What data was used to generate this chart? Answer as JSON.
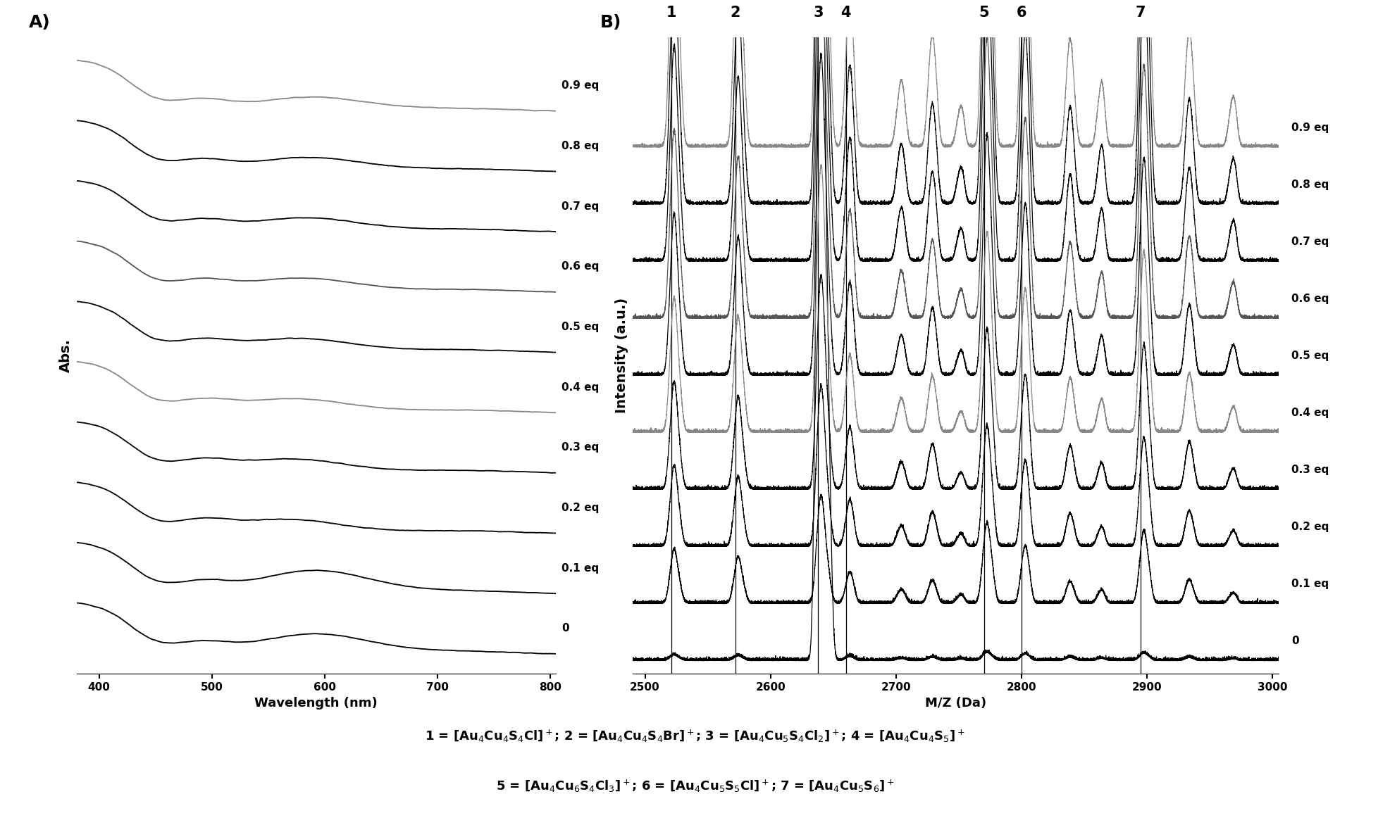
{
  "fig_width": 19.73,
  "fig_height": 11.82,
  "panel_A_label": "A)",
  "panel_B_label": "B)",
  "abs_xlabel": "Wavelength (nm)",
  "abs_ylabel": "Abs.",
  "ms_xlabel": "M/Z (Da)",
  "ms_ylabel": "Intensity (a.u.)",
  "abs_xlim": [
    380,
    805
  ],
  "abs_xticks": [
    400,
    500,
    600,
    700,
    800
  ],
  "ms_xlim": [
    2490,
    3005
  ],
  "ms_xticks": [
    2500,
    2600,
    2700,
    2800,
    2900,
    3000
  ],
  "eq_labels": [
    "0",
    "0.1 eq",
    "0.2 eq",
    "0.3 eq",
    "0.4 eq",
    "0.5 eq",
    "0.6 eq",
    "0.7 eq",
    "0.8 eq",
    "0.9 eq"
  ],
  "eq_values": [
    0.0,
    0.1,
    0.2,
    0.3,
    0.4,
    0.5,
    0.6,
    0.7,
    0.8,
    0.9
  ],
  "ms_peak_positions": [
    2521,
    2572,
    2638,
    2660,
    2770,
    2800,
    2895
  ],
  "ms_peak_labels": [
    "1",
    "2",
    "3",
    "4",
    "5",
    "6",
    "7"
  ],
  "line_colors": [
    "#000000",
    "#000000",
    "#000000",
    "#000000",
    "#888888",
    "#000000",
    "#555555",
    "#000000",
    "#000000",
    "#888888"
  ],
  "caption_line1": "1 = [Au$_4$Cu$_4$S$_4$Cl]$^+$; 2 = [Au$_4$Cu$_4$S$_4$Br]$^+$; 3 = [Au$_4$Cu$_5$S$_4$Cl$_2$]$^+$; 4 = [Au$_4$Cu$_4$S$_5$]$^+$",
  "caption_line2": "5 = [Au$_4$Cu$_6$S$_4$Cl$_3$]$^+$; 6 = [Au$_4$Cu$_5$S$_5$Cl]$^+$; 7 = [Au$_4$Cu$_5$S$_6$]$^+$"
}
